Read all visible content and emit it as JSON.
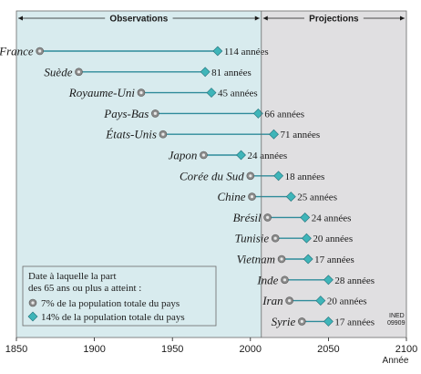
{
  "chart_data": {
    "type": "dumbbell",
    "xlim": [
      1850,
      2100
    ],
    "ticks": [
      1850,
      1900,
      1950,
      2000,
      2050,
      2100
    ],
    "xlabel": "Année",
    "observations_label": "Observations",
    "projections_label": "Projections",
    "projection_start": 2007,
    "years_suffix": "années",
    "rows": [
      {
        "country": "France",
        "start": 1865,
        "end": 1979,
        "years": 114
      },
      {
        "country": "Suède",
        "start": 1890,
        "end": 1971,
        "years": 81
      },
      {
        "country": "Royaume-Uni",
        "start": 1930,
        "end": 1975,
        "years": 45
      },
      {
        "country": "Pays-Bas",
        "start": 1939,
        "end": 2005,
        "years": 66
      },
      {
        "country": "États-Unis",
        "start": 1944,
        "end": 2015,
        "years": 71
      },
      {
        "country": "Japon",
        "start": 1970,
        "end": 1994,
        "years": 24
      },
      {
        "country": "Corée du Sud",
        "start": 2000,
        "end": 2018,
        "years": 18
      },
      {
        "country": "Chine",
        "start": 2001,
        "end": 2026,
        "years": 25
      },
      {
        "country": "Brésil",
        "start": 2011,
        "end": 2035,
        "years": 24
      },
      {
        "country": "Tunisie",
        "start": 2016,
        "end": 2036,
        "years": 20
      },
      {
        "country": "Vietnam",
        "start": 2020,
        "end": 2037,
        "years": 17
      },
      {
        "country": "Inde",
        "start": 2022,
        "end": 2050,
        "years": 28
      },
      {
        "country": "Iran",
        "start": 2025,
        "end": 2045,
        "years": 20
      },
      {
        "country": "Syrie",
        "start": 2033,
        "end": 2050,
        "years": 17
      }
    ],
    "legend": {
      "title_line1": "Date à laquelle la part",
      "title_line2": "des 65 ans ou plus a atteint :",
      "item1": "7% de la population totale du pays",
      "item2": "14% de la population totale du pays"
    },
    "credit_line1": "INED",
    "credit_line2": "09909",
    "colors": {
      "observations_bg": "#d8ebee",
      "projections_bg": "#e0dfe1",
      "line": "#2e8b9a",
      "diamond": "#3fb5b9",
      "dot": "#8c8c8c",
      "frame": "#6a6a6a"
    }
  }
}
